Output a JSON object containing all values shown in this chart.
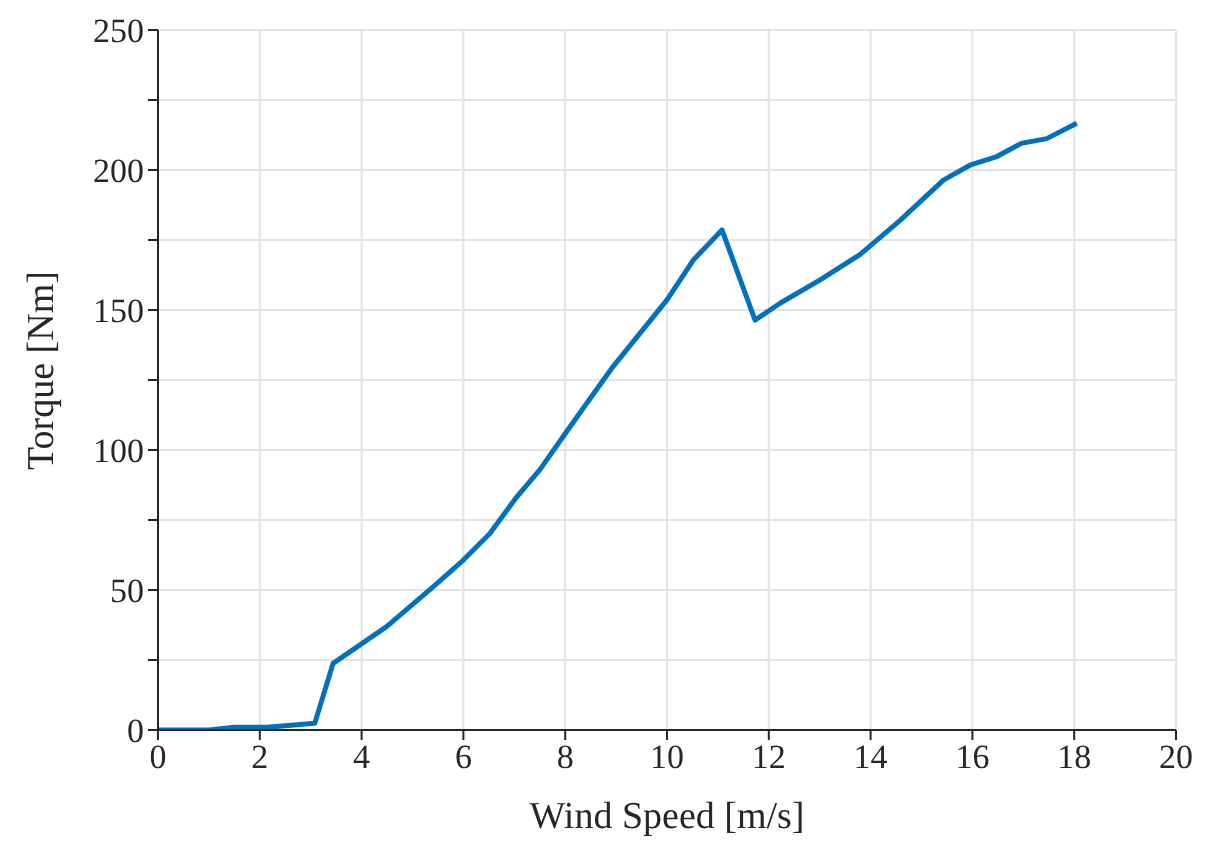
{
  "chart_data": {
    "type": "line",
    "xlabel": "Wind Speed [m/s]",
    "ylabel": "Torque [Nm]",
    "x": [
      0,
      1,
      1.5,
      2.15,
      3.08,
      3.44,
      4.49,
      5.41,
      6.0,
      6.52,
      7.05,
      7.5,
      7.96,
      8.42,
      8.94,
      10.0,
      10.52,
      11.08,
      11.73,
      12.22,
      13.0,
      13.79,
      14.58,
      15.43,
      15.95,
      16.48,
      16.96,
      17.46,
      18.05
    ],
    "series": [
      {
        "color": "#0072bd",
        "values": [
          0,
          0,
          1,
          1,
          2.4,
          23.8,
          36.9,
          51.2,
          60.7,
          70.2,
          83.3,
          92.9,
          104.8,
          116.6,
          129.8,
          153.6,
          167.9,
          178.6,
          146.4,
          152.4,
          160.7,
          169.8,
          182,
          196.4,
          201.7,
          204.8,
          209.5,
          211.2,
          216.7
        ]
      }
    ],
    "xlim": [
      0,
      20
    ],
    "xticks": [
      0,
      2,
      4,
      6,
      8,
      10,
      12,
      14,
      16,
      18,
      20
    ],
    "ylim": [
      0,
      250
    ],
    "yticks": [
      0,
      {
        "value": 25,
        "label": null
      },
      50,
      {
        "value": 75,
        "label": null
      },
      100,
      {
        "value": 125,
        "label": null
      },
      150,
      {
        "value": 175,
        "label": null
      },
      200,
      {
        "value": 225,
        "label": null
      },
      250
    ],
    "grid": true,
    "marker": "none",
    "line_style": "solid",
    "legend": false
  }
}
